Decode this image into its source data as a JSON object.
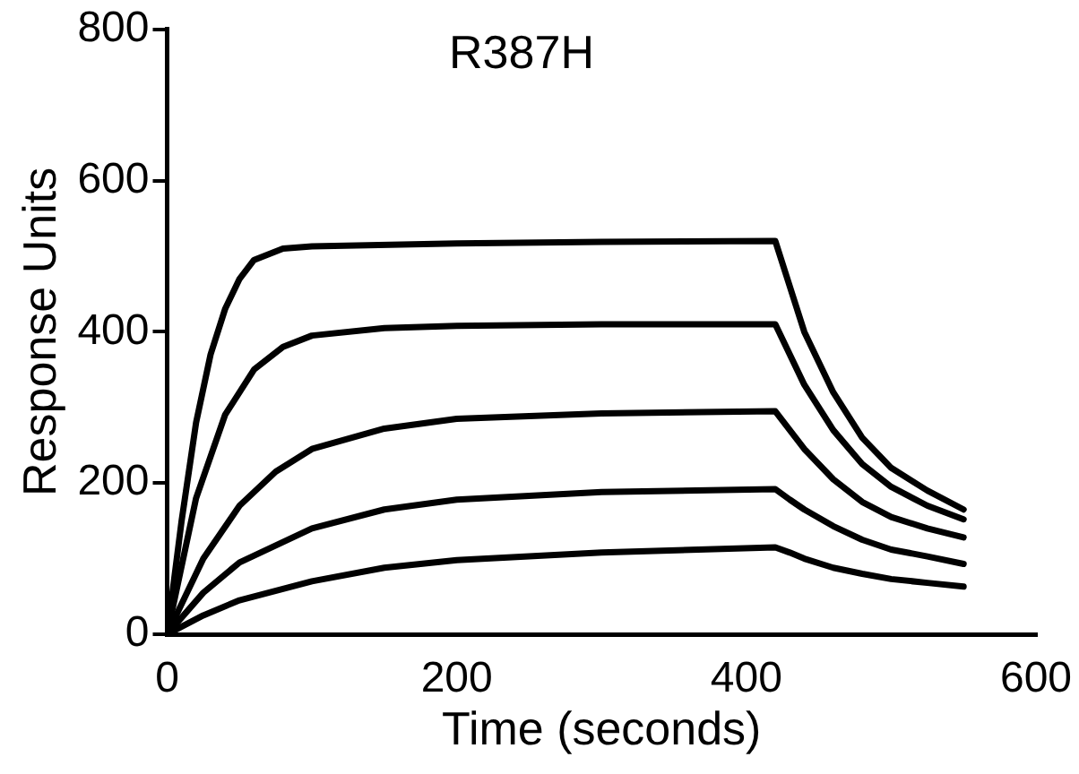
{
  "chart_data": {
    "type": "line",
    "title": "R387H",
    "xlabel": "Time (seconds)",
    "ylabel": "Response Units",
    "xlim": [
      0,
      600
    ],
    "xticks": [
      0,
      200,
      400,
      600
    ],
    "ylim": [
      0,
      800
    ],
    "yticks": [
      0,
      200,
      400,
      600,
      800
    ],
    "grid": false,
    "legend": false,
    "marker": "none",
    "line_style": "solid",
    "series": [
      {
        "color": "#000000",
        "x": [
          0,
          10,
          20,
          30,
          40,
          50,
          60,
          80,
          100,
          200,
          300,
          420,
          430,
          440,
          460,
          480,
          500,
          525,
          550
        ],
        "values": [
          0,
          150,
          280,
          370,
          430,
          470,
          495,
          510,
          513,
          517,
          519,
          520,
          460,
          400,
          320,
          260,
          220,
          190,
          165
        ]
      },
      {
        "color": "#000000",
        "x": [
          0,
          20,
          40,
          60,
          80,
          100,
          150,
          200,
          300,
          420,
          430,
          440,
          460,
          480,
          500,
          525,
          550
        ],
        "values": [
          0,
          180,
          290,
          350,
          380,
          395,
          405,
          408,
          410,
          410,
          370,
          330,
          270,
          225,
          195,
          170,
          152
        ]
      },
      {
        "color": "#000000",
        "x": [
          0,
          25,
          50,
          75,
          100,
          150,
          200,
          300,
          420,
          430,
          440,
          460,
          480,
          500,
          525,
          550
        ],
        "values": [
          0,
          100,
          170,
          215,
          245,
          272,
          285,
          292,
          295,
          270,
          245,
          205,
          175,
          155,
          140,
          128
        ]
      },
      {
        "color": "#000000",
        "x": [
          0,
          25,
          50,
          100,
          150,
          200,
          300,
          420,
          430,
          440,
          460,
          480,
          500,
          525,
          550
        ],
        "values": [
          0,
          55,
          95,
          140,
          165,
          178,
          188,
          192,
          178,
          165,
          143,
          125,
          112,
          103,
          93
        ]
      },
      {
        "color": "#000000",
        "x": [
          0,
          25,
          50,
          100,
          150,
          200,
          300,
          420,
          430,
          440,
          460,
          480,
          500,
          525,
          550
        ],
        "values": [
          0,
          25,
          45,
          70,
          88,
          98,
          108,
          115,
          108,
          100,
          88,
          80,
          73,
          68,
          63
        ]
      }
    ]
  }
}
